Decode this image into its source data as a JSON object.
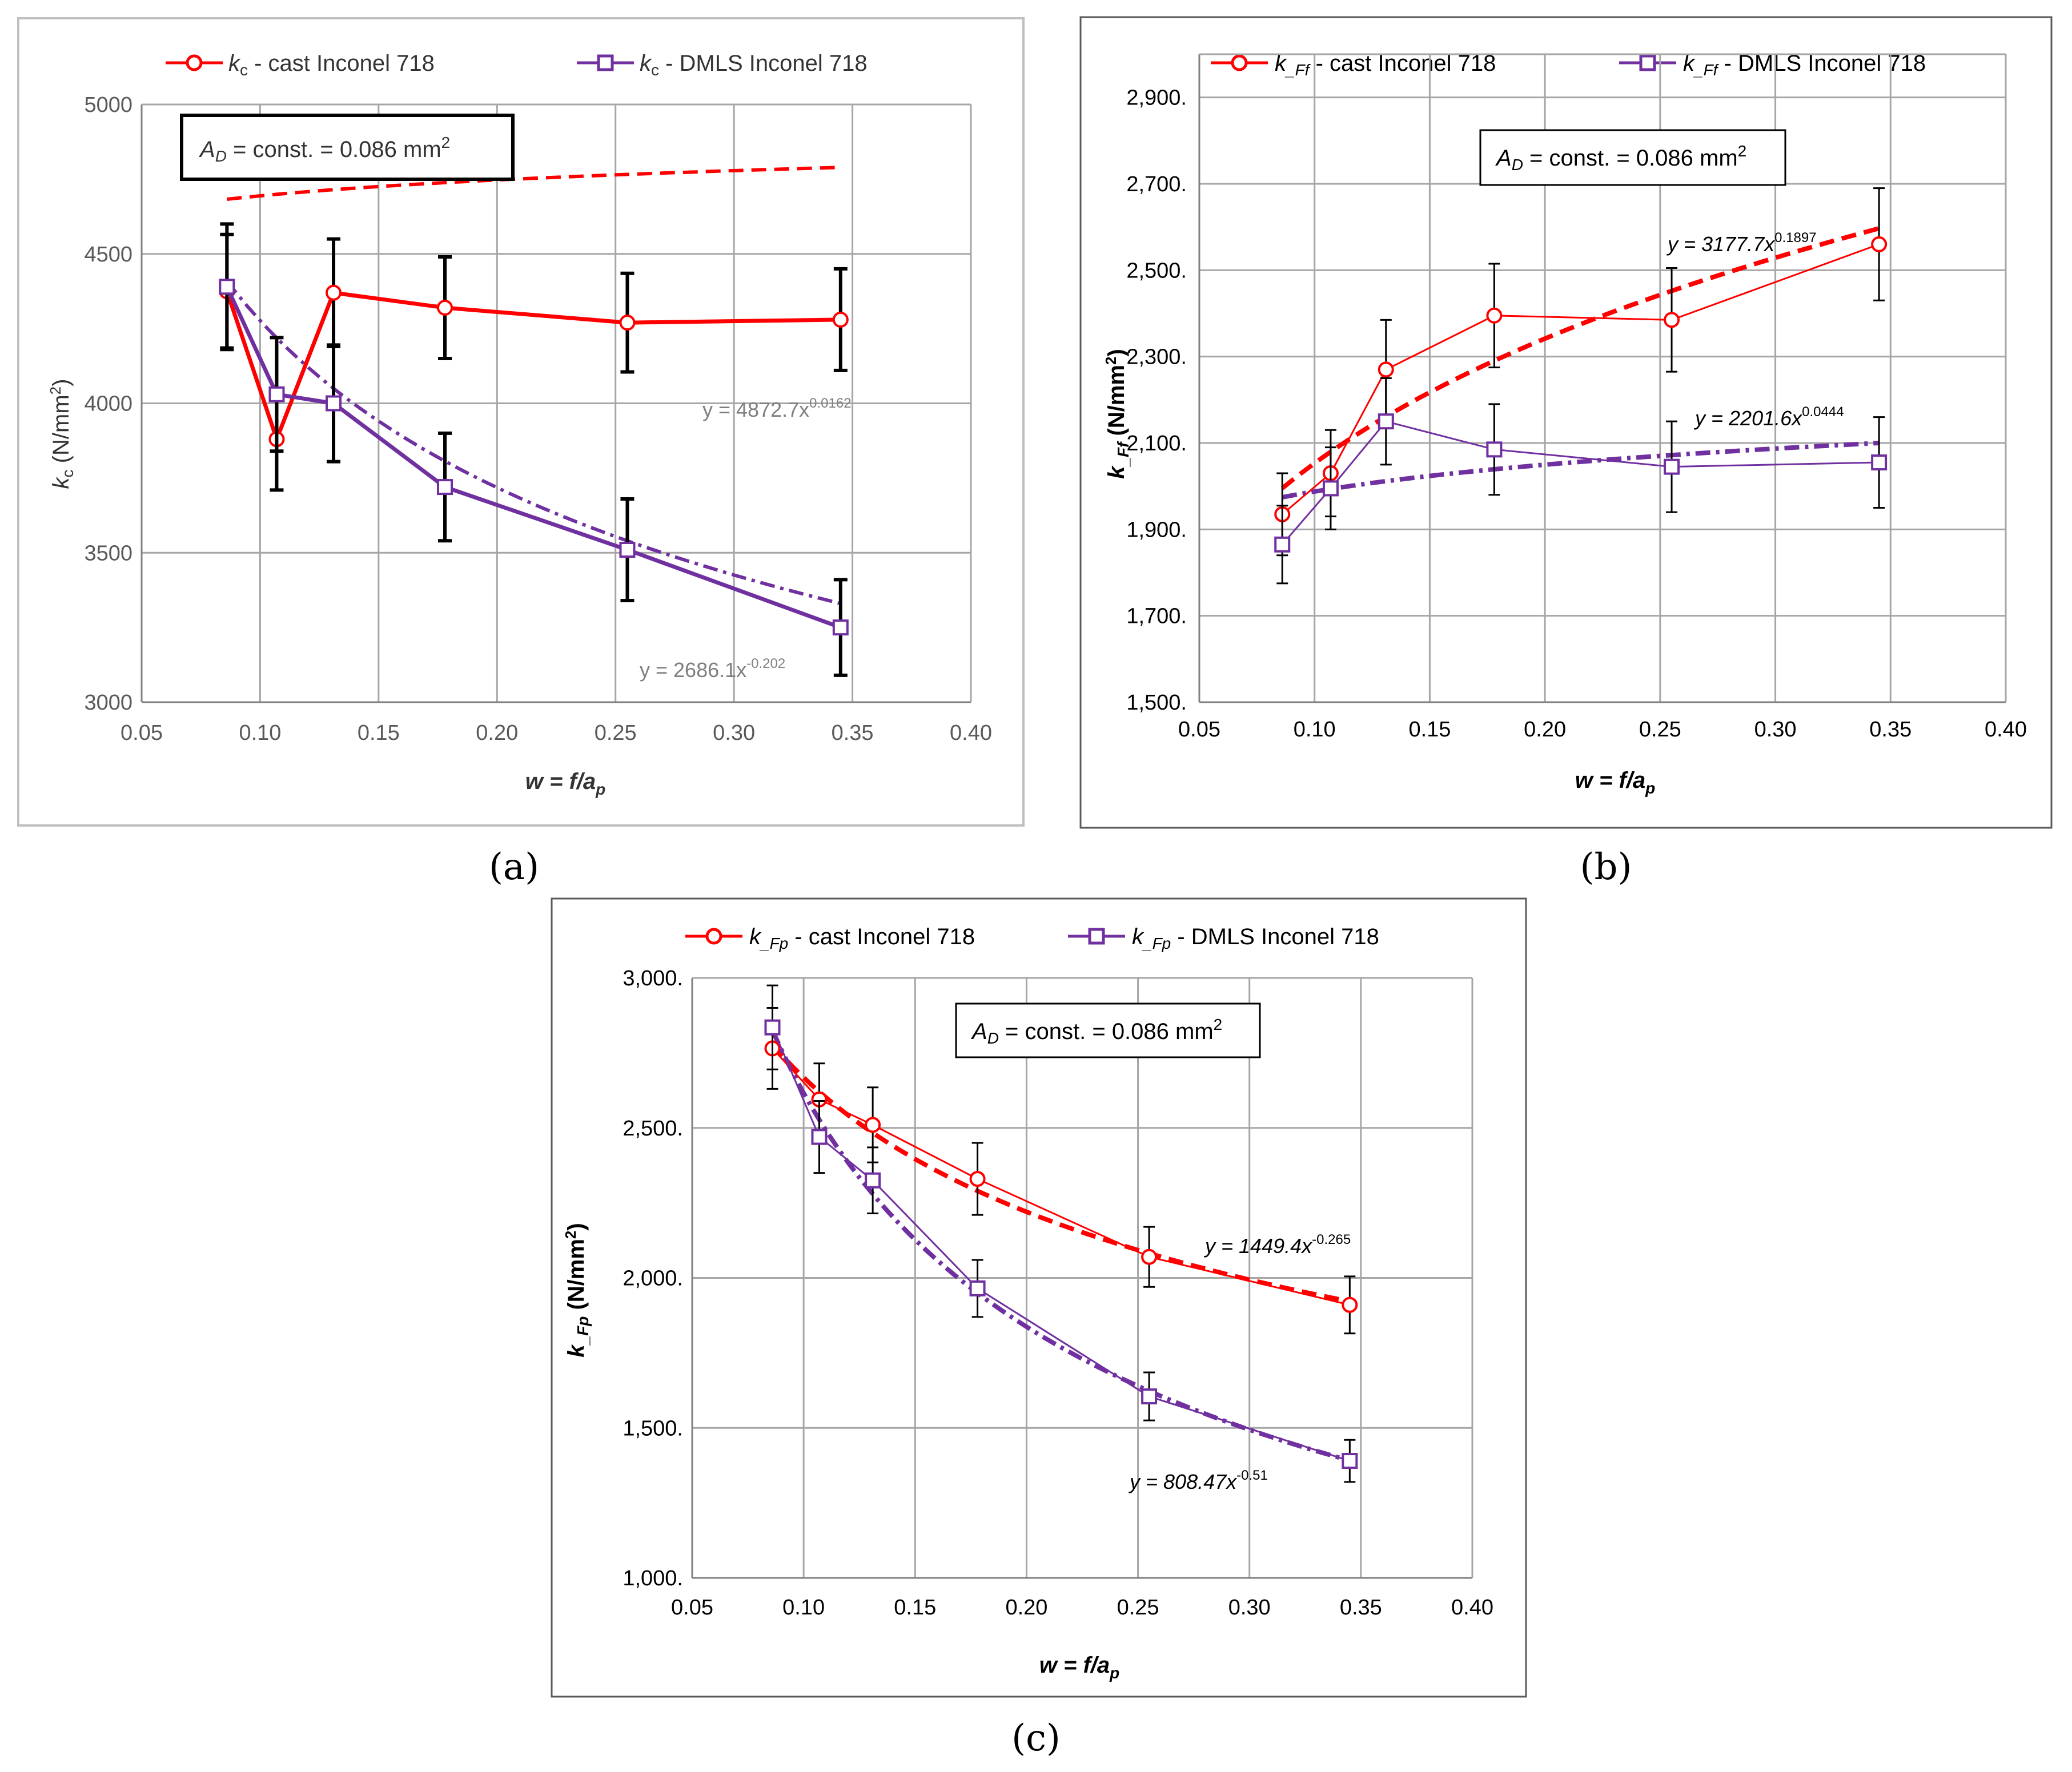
{
  "colors": {
    "cast": "#ff0000",
    "dmls": "#7030a0",
    "grid": "#a6a6a6",
    "axis": "#808080",
    "text": "#000000"
  },
  "chart_data": [
    {
      "panel": "a",
      "caption": "(a)",
      "type": "line",
      "legend": {
        "cast": "k_c - cast Inconel 718",
        "dmls": "k_c - DMLS Inconel 718",
        "placement": "top"
      },
      "annotation": "A_D = const. = 0.086 mm²",
      "xlabel": "w = f/a_p",
      "ylabel": "k_c (N/mm²)",
      "xlim": [
        0.05,
        0.4
      ],
      "ylim": [
        3000,
        5000
      ],
      "xticks": [
        "0.05",
        "0.10",
        "0.15",
        "0.20",
        "0.25",
        "0.30",
        "0.35",
        "0.40"
      ],
      "yticks": [
        "3000",
        "3500",
        "4000",
        "4500",
        "5000"
      ],
      "series": [
        {
          "name": "cast Inconel 718",
          "x": [
            0.086,
            0.107,
            0.131,
            0.178,
            0.255,
            0.345
          ],
          "y": [
            4375,
            3880,
            4370,
            4320,
            4270,
            4280
          ],
          "err": [
            190,
            170,
            180,
            170,
            165,
            170
          ]
        },
        {
          "name": "DMLS Inconel 718",
          "x": [
            0.086,
            0.107,
            0.131,
            0.178,
            0.255,
            0.345
          ],
          "y": [
            4390,
            4030,
            4000,
            3720,
            3510,
            3250
          ],
          "err": [
            210,
            190,
            195,
            180,
            170,
            160
          ]
        }
      ],
      "fits": [
        {
          "series": "cast",
          "a": 4872.7,
          "b": 0.0162,
          "label": "y = 4872.7x",
          "exp": "0.0162"
        },
        {
          "series": "dmls",
          "a": 2686.1,
          "b": -0.202,
          "label": "y = 2686.1x",
          "exp": "-0.202"
        }
      ]
    },
    {
      "panel": "b",
      "caption": "(b)",
      "type": "line",
      "legend": {
        "cast_sym": "k",
        "cast_sub": "_Ff",
        "cast_rest": " - cast Inconel 718",
        "dmls_rest": " - DMLS Inconel 718",
        "placement": "top"
      },
      "annotation": "A_D = const. = 0.086 mm²",
      "xlabel": "w = f/a_p",
      "ylabel": "k_Ff (N/mm²)",
      "xlim": [
        0.05,
        0.4
      ],
      "ylim": [
        1500,
        3000
      ],
      "xticks": [
        "0.05",
        "0.10",
        "0.15",
        "0.20",
        "0.25",
        "0.30",
        "0.35",
        "0.40"
      ],
      "yticks": [
        "1,500.",
        "1,700.",
        "1,900.",
        "2,100.",
        "2,300.",
        "2,500.",
        "2,700.",
        "2,900."
      ],
      "series": [
        {
          "name": "cast Inconel 718",
          "x": [
            0.086,
            0.107,
            0.131,
            0.178,
            0.255,
            0.345
          ],
          "y": [
            1935,
            2030,
            2270,
            2395,
            2385,
            2560
          ],
          "err": [
            95,
            100,
            115,
            120,
            120,
            130
          ]
        },
        {
          "name": "DMLS Inconel 718",
          "x": [
            0.086,
            0.107,
            0.131,
            0.178,
            0.255,
            0.345
          ],
          "y": [
            1865,
            1995,
            2150,
            2085,
            2045,
            2055
          ],
          "err": [
            90,
            95,
            100,
            105,
            105,
            105
          ]
        }
      ],
      "fits": [
        {
          "series": "cast",
          "a": 3177.7,
          "b": 0.1897,
          "label": "y = 3177.7x",
          "exp": "0.1897"
        },
        {
          "series": "dmls",
          "a": 2201.6,
          "b": 0.0444,
          "label": "y = 2201.6x",
          "exp": "0.0444"
        }
      ]
    },
    {
      "panel": "c",
      "caption": "(c)",
      "type": "line",
      "legend": {
        "cast_sub": "_Fp",
        "cast_rest": " - cast Inconel 718",
        "dmls_rest": " - DMLS Inconel 718",
        "placement": "top"
      },
      "annotation": "A_D = const. = 0.086 mm²",
      "xlabel": "w = f/a_p",
      "ylabel": "k_Fp (N/mm²)",
      "xlim": [
        0.05,
        0.4
      ],
      "ylim": [
        1000,
        3000
      ],
      "xticks": [
        "0.05",
        "0.10",
        "0.15",
        "0.20",
        "0.25",
        "0.30",
        "0.35",
        "0.40"
      ],
      "yticks": [
        "1,000.",
        "1,500.",
        "2,000.",
        "2,500.",
        "3,000."
      ],
      "series": [
        {
          "name": "cast Inconel 718",
          "x": [
            0.086,
            0.107,
            0.131,
            0.178,
            0.255,
            0.345
          ],
          "y": [
            2765,
            2595,
            2510,
            2330,
            2070,
            1910
          ],
          "err": [
            135,
            120,
            125,
            120,
            100,
            95
          ]
        },
        {
          "name": "DMLS Inconel 718",
          "x": [
            0.086,
            0.107,
            0.131,
            0.178,
            0.255,
            0.345
          ],
          "y": [
            2835,
            2470,
            2325,
            1965,
            1605,
            1390
          ],
          "err": [
            140,
            120,
            110,
            95,
            80,
            70
          ]
        }
      ],
      "fits": [
        {
          "series": "cast",
          "a": 1449.4,
          "b": -0.265,
          "label": "y = 1449.4x",
          "exp": "-0.265"
        },
        {
          "series": "dmls",
          "a": 808.47,
          "b": -0.51,
          "label": "y = 808.47x",
          "exp": "-0.51"
        }
      ]
    }
  ],
  "text": {
    "a": {
      "legend_cast_k": "k",
      "legend_cast_sub": "c",
      "legend_cast_rest": " - cast Inconel 718",
      "legend_dmls_k": "k",
      "legend_dmls_sub": "c",
      "legend_dmls_rest": " - DMLS Inconel 718",
      "ad_A": "A",
      "ad_D": "D",
      "ad_rest": " = const. = 0.086 mm",
      "ad_sup": "2",
      "ylabel_k": "k",
      "ylabel_sub": "c",
      "ylabel_rest": " (N/mm",
      "ylabel_sup": "2",
      "ylabel_close": ")",
      "xlabel_main": "w = f/a",
      "xlabel_sub": "p",
      "fit_cast_main": "y = 4872.7x",
      "fit_cast_exp": "0.0162",
      "fit_dmls_main": "y = 2686.1x",
      "fit_dmls_exp": "-0.202"
    },
    "b": {
      "legend_cast_k": "k",
      "legend_cast_sub": "_Ff",
      "legend_cast_rest": " - cast Inconel 718",
      "legend_dmls_k": "k",
      "legend_dmls_sub": "_Ff",
      "legend_dmls_rest": " - DMLS Inconel 718",
      "ad_A": "A",
      "ad_D": "D",
      "ad_rest": " = const. = 0.086 mm",
      "ad_sup": "2",
      "ylabel_k": "k",
      "ylabel_sub": "_Ff",
      "ylabel_rest": "  (N/mm",
      "ylabel_sup": "2",
      "ylabel_close": ")",
      "xlabel_main": "w = f/a",
      "xlabel_sub": "p",
      "fit_cast_main": "y = 3177.7x",
      "fit_cast_exp": "0.1897",
      "fit_dmls_main": "y = 2201.6x",
      "fit_dmls_exp": "0.0444"
    },
    "c": {
      "legend_cast_k": "k",
      "legend_cast_sub": "_Fp",
      "legend_cast_rest": " - cast Inconel 718",
      "legend_dmls_k": "k",
      "legend_dmls_sub": "_Fp",
      "legend_dmls_rest": " - DMLS Inconel 718",
      "ad_A": "A",
      "ad_D": "D",
      "ad_rest": " = const. = 0.086 mm",
      "ad_sup": "2",
      "ylabel_k": "k",
      "ylabel_sub": "_Fp",
      "ylabel_rest": "  (N/mm",
      "ylabel_sup": "2",
      "ylabel_close": ")",
      "xlabel_main": "w = f/a",
      "xlabel_sub": "p",
      "fit_cast_main": "y = 1449.4x",
      "fit_cast_exp": "-0.265",
      "fit_dmls_main": "y = 808.47x",
      "fit_dmls_exp": "-0.51"
    }
  }
}
